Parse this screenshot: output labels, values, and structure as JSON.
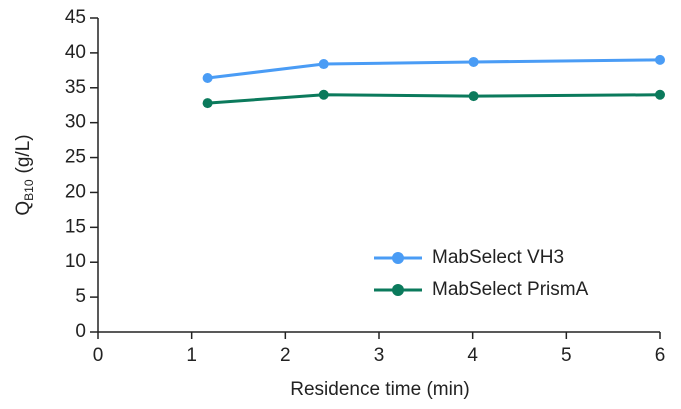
{
  "chart_data": {
    "type": "line",
    "xlabel": "Residence time (min)",
    "ylabel": "Q",
    "ylabel_subscript": "B10",
    "ylabel_unit": "(g/L)",
    "xlim": [
      0,
      6
    ],
    "xticks": [
      0,
      1,
      2,
      3,
      4,
      5,
      6
    ],
    "ylim": [
      0,
      45
    ],
    "yticks": [
      0,
      5,
      10,
      15,
      20,
      25,
      30,
      35,
      40,
      45
    ],
    "grid": false,
    "legend": "lower right",
    "series": [
      {
        "name": "MabSelect VH3",
        "color": "#4a9cf5",
        "x": [
          1.17,
          2.41,
          4.01,
          6.0
        ],
        "values": [
          36.4,
          38.4,
          38.7,
          39.0
        ]
      },
      {
        "name": "MabSelect PrismA",
        "color": "#0b7a5c",
        "x": [
          1.17,
          2.41,
          4.01,
          6.0
        ],
        "values": [
          32.8,
          34.0,
          33.8,
          34.0
        ]
      }
    ]
  }
}
